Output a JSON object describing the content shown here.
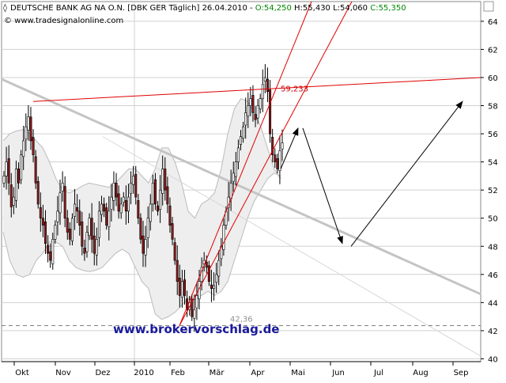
{
  "header": {
    "symbol_icon": "instrument-marker-icon",
    "instrument": "DEUTSCHE BANK AG NA O.N. [DBK GER  Täglich] 26.04.2010 - ",
    "open": "O:54,250",
    "high_low": " H:55,430 L:54,060 ",
    "close": "C:55,350",
    "source_icon": "copyright-icon",
    "source": "© www.tradesignalonline.com"
  },
  "watermark": "www.brokervorschlag.de",
  "chart_data": {
    "type": "candlestick",
    "title": "DEUTSCHE BANK AG NA O.N. [DBK GER  Täglich] 26.04.2010",
    "x_ticks": [
      "Okt",
      "Nov",
      "Dez",
      "2010",
      "Feb",
      "Mär",
      "Apr",
      "Mai",
      "Jun",
      "Jul",
      "Aug",
      "Sep"
    ],
    "y_ticks": [
      40,
      42,
      44,
      46,
      48,
      50,
      52,
      54,
      56,
      58,
      60,
      62,
      64
    ],
    "ylim": [
      39.8,
      65.4
    ],
    "y_axis_side": "right",
    "grid": true,
    "colors": {
      "up": "#ffffff",
      "down": "#8b1a1a",
      "wick": "#000000",
      "band_fill": "#eeeeee",
      "band_line": "#bbbbbb",
      "trend_red": "#e00000",
      "trend_gray": "#c4c4c4",
      "arrow": "#000000",
      "watermark": "#1a1a9c",
      "close_value": "#008800"
    },
    "annotations": [
      {
        "label": "59,233",
        "value": 59.233,
        "color": "#cc0000"
      },
      {
        "label": "42,36",
        "value": 42.36,
        "color": "#909090"
      }
    ],
    "last_bar": {
      "date": "26.04.2010",
      "open": 54.25,
      "high": 55.43,
      "low": 54.06,
      "close": 55.35
    },
    "closes": [
      53.0,
      54.0,
      52.5,
      50.8,
      51.5,
      53.5,
      52.5,
      54.5,
      55.5,
      56.5,
      57.2,
      55.5,
      54.5,
      52.5,
      51.0,
      50.0,
      49.5,
      48.2,
      47.5,
      47.0,
      48.5,
      49.5,
      50.5,
      51.8,
      52.5,
      50.0,
      49.0,
      48.5,
      50.0,
      51.0,
      50.5,
      49.5,
      48.0,
      47.5,
      49.0,
      50.0,
      48.5,
      47.5,
      48.5,
      50.5,
      51.0,
      50.5,
      49.5,
      50.5,
      51.5,
      52.5,
      51.5,
      50.5,
      51.0,
      51.5,
      50.5,
      51.5,
      52.5,
      53.0,
      51.5,
      50.0,
      48.5,
      47.5,
      48.5,
      50.0,
      51.0,
      52.5,
      51.0,
      50.5,
      52.0,
      53.5,
      52.0,
      51.0,
      49.5,
      48.5,
      47.0,
      45.5,
      44.5,
      45.5,
      44.5,
      43.5,
      44.0,
      43.0,
      43.5,
      44.5,
      45.5,
      46.5,
      47.0,
      46.5,
      45.5,
      45.0,
      45.2,
      46.0,
      47.0,
      48.0,
      49.5,
      50.5,
      51.5,
      52.5,
      53.2,
      54.0,
      55.0,
      55.8,
      56.5,
      57.5,
      58.0,
      58.5,
      57.5,
      57.0,
      58.0,
      58.5,
      59.5,
      60.0,
      59.0,
      56.0,
      54.5,
      54.0,
      53.5,
      54.8,
      55.35
    ],
    "series": [
      {
        "name": "upper envelope",
        "values": [
          55.5,
          56.0,
          56.2,
          56.3,
          56.0,
          55.5,
          55.0,
          54.0,
          52.8,
          52.0,
          51.8,
          52.0,
          52.3,
          52.5,
          52.4,
          52.3,
          52.2,
          52.5,
          53.0,
          53.5,
          53.5,
          53.0,
          52.5,
          53.5,
          55.0,
          55.0,
          54.0,
          52.5,
          50.5,
          50.0,
          51.0,
          51.3,
          51.8,
          53.5,
          56.0,
          57.8,
          58.5,
          58.3,
          57.5,
          56.5,
          55.0,
          53.5,
          52.8
        ]
      },
      {
        "name": "lower envelope",
        "values": [
          49.0,
          47.0,
          46.0,
          45.8,
          46.0,
          47.0,
          47.5,
          48.3,
          48.3,
          48.0,
          47.0,
          46.5,
          46.3,
          46.2,
          46.3,
          46.5,
          47.0,
          47.5,
          47.8,
          47.5,
          46.5,
          45.5,
          45.0,
          43.2,
          42.8,
          43.0,
          43.3,
          43.8,
          44.3,
          44.2,
          44.5,
          44.8,
          44.5,
          44.8,
          45.5,
          47.0,
          48.5,
          50.0,
          51.2,
          52.0,
          52.8,
          53.2,
          53.0
        ]
      },
      {
        "name": "resistance",
        "points": [
          [
            "Okt",
            58.3
          ],
          [
            "Sep",
            60.0
          ]
        ]
      },
      {
        "name": "red channel upper",
        "points": [
          [
            "Feb",
            42.36
          ],
          [
            "Apr",
            64.8
          ]
        ]
      },
      {
        "name": "red channel lower",
        "points": [
          [
            "Feb",
            42.36
          ],
          [
            "Apr",
            64.8
          ]
        ]
      },
      {
        "name": "gray downtrend",
        "points": [
          [
            "Okt",
            60.0
          ],
          [
            "Sep",
            44.6
          ]
        ]
      },
      {
        "name": "gray downtrend thin",
        "points": [
          [
            "Okt",
            55.8
          ],
          [
            "Sep",
            40.2
          ]
        ]
      },
      {
        "name": "support",
        "value": 42.36
      }
    ],
    "projection": [
      [
        "Apr",
        53.5
      ],
      [
        "Apr",
        56.4
      ],
      [
        "Mai",
        48.2
      ],
      [
        "Sep",
        58.3
      ]
    ]
  }
}
